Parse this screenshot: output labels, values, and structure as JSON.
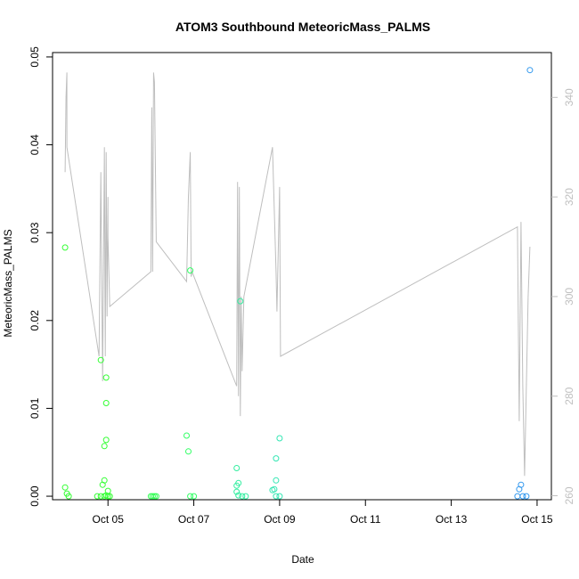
{
  "chart_data": {
    "type": "scatter",
    "title": "ATOM3 Southbound MeteoricMass_PALMS",
    "xlabel": "Date",
    "ylabel": "MeteoricMass_PALMS",
    "x_axis": {
      "type": "date",
      "range": [
        "2017-10-03T17:00",
        "2017-10-15T08:00"
      ],
      "ticks": [
        {
          "value": "2017-10-05",
          "label": "Oct 05"
        },
        {
          "value": "2017-10-07",
          "label": "Oct 07"
        },
        {
          "value": "2017-10-09",
          "label": "Oct 09"
        },
        {
          "value": "2017-10-11",
          "label": "Oct 11"
        },
        {
          "value": "2017-10-13",
          "label": "Oct 13"
        },
        {
          "value": "2017-10-15",
          "label": "Oct 15"
        }
      ]
    },
    "y_axis_left": {
      "range": [
        -0.0004,
        0.0505
      ],
      "ticks": [
        {
          "value": 0.0,
          "label": "0.00"
        },
        {
          "value": 0.01,
          "label": "0.01"
        },
        {
          "value": 0.02,
          "label": "0.02"
        },
        {
          "value": 0.03,
          "label": "0.03"
        },
        {
          "value": 0.04,
          "label": "0.04"
        },
        {
          "value": 0.05,
          "label": "0.05"
        }
      ]
    },
    "y_axis_right": {
      "range": [
        259.2,
        349.0
      ],
      "color": "#bfbfbf",
      "ticks": [
        {
          "value": 260,
          "label": "260"
        },
        {
          "value": 280,
          "label": "280"
        },
        {
          "value": 300,
          "label": "300"
        },
        {
          "value": 320,
          "label": "320"
        },
        {
          "value": 340,
          "label": "340"
        }
      ]
    },
    "colors": {
      "axes": "#000000",
      "line": "#bebebe",
      "point_early": "#33ff33",
      "point_mid": "#33e6b3",
      "point_late": "#3399ee"
    },
    "grid": false,
    "legend": "none",
    "points": [
      {
        "x": "2017-10-04T00:00",
        "y": 0.0283,
        "color": "#33ff33"
      },
      {
        "x": "2017-10-04T00:00",
        "y": 0.001,
        "color": "#33ff33"
      },
      {
        "x": "2017-10-04T01:00",
        "y": 0.0003,
        "color": "#33ff33"
      },
      {
        "x": "2017-10-04T02:00",
        "y": 0.0,
        "color": "#33ff33"
      },
      {
        "x": "2017-10-04T20:00",
        "y": 0.0155,
        "color": "#33ff33"
      },
      {
        "x": "2017-10-04T21:00",
        "y": 0.0013,
        "color": "#33ff33"
      },
      {
        "x": "2017-10-04T22:00",
        "y": 0.0057,
        "color": "#33ff33"
      },
      {
        "x": "2017-10-04T23:00",
        "y": 0.0135,
        "color": "#33ff33"
      },
      {
        "x": "2017-10-04T23:00",
        "y": 0.0106,
        "color": "#33ff33"
      },
      {
        "x": "2017-10-04T23:00",
        "y": 0.0064,
        "color": "#33ff33"
      },
      {
        "x": "2017-10-04T22:00",
        "y": 0.0018,
        "color": "#33ff33"
      },
      {
        "x": "2017-10-05T00:00",
        "y": 0.0006,
        "color": "#33ff33"
      },
      {
        "x": "2017-10-04T18:00",
        "y": 0.0,
        "color": "#33ff33"
      },
      {
        "x": "2017-10-04T20:00",
        "y": 0.0,
        "color": "#33ff33"
      },
      {
        "x": "2017-10-04T22:00",
        "y": 0.0,
        "color": "#33ff33"
      },
      {
        "x": "2017-10-04T23:00",
        "y": 0.0001,
        "color": "#33ff33"
      },
      {
        "x": "2017-10-05T00:00",
        "y": 0.0,
        "color": "#33ff33"
      },
      {
        "x": "2017-10-05T01:00",
        "y": 0.0,
        "color": "#33ff33"
      },
      {
        "x": "2017-10-06T00:00",
        "y": 0.0,
        "color": "#33ff55"
      },
      {
        "x": "2017-10-06T01:00",
        "y": 0.0,
        "color": "#33ff55"
      },
      {
        "x": "2017-10-06T02:00",
        "y": 0.0,
        "color": "#33ff55"
      },
      {
        "x": "2017-10-06T03:00",
        "y": 0.0,
        "color": "#33ff55"
      },
      {
        "x": "2017-10-06T20:00",
        "y": 0.0069,
        "color": "#33ff66"
      },
      {
        "x": "2017-10-06T21:00",
        "y": 0.0051,
        "color": "#33ff66"
      },
      {
        "x": "2017-10-06T22:00",
        "y": 0.0257,
        "color": "#33ff66"
      },
      {
        "x": "2017-10-06T22:00",
        "y": 0.0,
        "color": "#33ff66"
      },
      {
        "x": "2017-10-07T00:00",
        "y": 0.0,
        "color": "#33ff66"
      },
      {
        "x": "2017-10-08T00:00",
        "y": 0.0032,
        "color": "#33eea0"
      },
      {
        "x": "2017-10-08T01:00",
        "y": 0.0015,
        "color": "#33eea0"
      },
      {
        "x": "2017-10-08T00:00",
        "y": 0.0012,
        "color": "#33eea0"
      },
      {
        "x": "2017-10-08T00:00",
        "y": 0.0005,
        "color": "#33eea0"
      },
      {
        "x": "2017-10-08T02:00",
        "y": 0.0222,
        "color": "#33eea0"
      },
      {
        "x": "2017-10-08T01:00",
        "y": 0.0001,
        "color": "#33eea0"
      },
      {
        "x": "2017-10-08T03:00",
        "y": 0.0,
        "color": "#33eea0"
      },
      {
        "x": "2017-10-08T05:00",
        "y": 0.0,
        "color": "#33eea0"
      },
      {
        "x": "2017-10-08T20:00",
        "y": 0.0007,
        "color": "#33e6b3"
      },
      {
        "x": "2017-10-08T22:00",
        "y": 0.0018,
        "color": "#33e6b3"
      },
      {
        "x": "2017-10-08T22:00",
        "y": 0.0043,
        "color": "#33e6b3"
      },
      {
        "x": "2017-10-09T00:00",
        "y": 0.0066,
        "color": "#33e6b3"
      },
      {
        "x": "2017-10-08T21:00",
        "y": 0.0008,
        "color": "#33e6b3"
      },
      {
        "x": "2017-10-08T22:00",
        "y": 0.0,
        "color": "#33e6b3"
      },
      {
        "x": "2017-10-09T00:00",
        "y": 0.0,
        "color": "#33e6b3"
      },
      {
        "x": "2017-10-14T13:00",
        "y": 0.0,
        "color": "#3399ee"
      },
      {
        "x": "2017-10-14T14:00",
        "y": 0.0008,
        "color": "#3399ee"
      },
      {
        "x": "2017-10-14T15:00",
        "y": 0.0013,
        "color": "#3399ee"
      },
      {
        "x": "2017-10-14T16:00",
        "y": 0.0,
        "color": "#3399ee"
      },
      {
        "x": "2017-10-14T18:00",
        "y": 0.0,
        "color": "#3399ee"
      },
      {
        "x": "2017-10-14T20:00",
        "y": 0.0485,
        "color": "#3399ee"
      }
    ],
    "secondary_series": {
      "axis": "right",
      "type": "line",
      "color": "#bebebe",
      "points": [
        [
          "2017-10-04T00:00",
          325
        ],
        [
          "2017-10-04T00:30",
          340
        ],
        [
          "2017-10-04T01:00",
          345
        ],
        [
          "2017-10-04T01:00",
          330
        ],
        [
          "2017-10-04T19:00",
          288
        ],
        [
          "2017-10-04T20:00",
          325
        ],
        [
          "2017-10-04T21:00",
          283
        ],
        [
          "2017-10-04T22:00",
          330
        ],
        [
          "2017-10-04T22:30",
          288
        ],
        [
          "2017-10-04T23:00",
          329
        ],
        [
          "2017-10-04T23:30",
          296
        ],
        [
          "2017-10-05T00:00",
          320
        ],
        [
          "2017-10-05T00:00",
          312
        ],
        [
          "2017-10-05T01:00",
          298
        ],
        [
          "2017-10-06T00:00",
          305
        ],
        [
          "2017-10-06T00:30",
          338
        ],
        [
          "2017-10-06T01:00",
          305
        ],
        [
          "2017-10-06T01:30",
          345
        ],
        [
          "2017-10-06T02:00",
          343
        ],
        [
          "2017-10-06T03:00",
          311
        ],
        [
          "2017-10-06T20:00",
          303
        ],
        [
          "2017-10-06T21:00",
          320
        ],
        [
          "2017-10-06T22:00",
          329
        ],
        [
          "2017-10-06T22:30",
          304
        ],
        [
          "2017-10-06T23:00",
          305
        ],
        [
          "2017-10-08T00:00",
          282
        ],
        [
          "2017-10-08T00:30",
          323
        ],
        [
          "2017-10-08T01:00",
          280
        ],
        [
          "2017-10-08T01:30",
          322
        ],
        [
          "2017-10-08T02:00",
          276
        ],
        [
          "2017-10-08T02:30",
          300
        ],
        [
          "2017-10-08T03:00",
          285
        ],
        [
          "2017-10-08T04:00",
          300
        ],
        [
          "2017-10-08T20:00",
          330
        ],
        [
          "2017-10-08T22:00",
          305
        ],
        [
          "2017-10-08T22:30",
          297
        ],
        [
          "2017-10-09T00:00",
          322
        ],
        [
          "2017-10-09T00:30",
          288
        ],
        [
          "2017-10-14T13:00",
          314
        ],
        [
          "2017-10-14T14:00",
          275
        ],
        [
          "2017-10-14T15:00",
          315
        ],
        [
          "2017-10-14T16:00",
          282
        ],
        [
          "2017-10-14T17:00",
          264
        ],
        [
          "2017-10-14T19:00",
          300
        ],
        [
          "2017-10-14T20:00",
          310
        ]
      ]
    }
  }
}
